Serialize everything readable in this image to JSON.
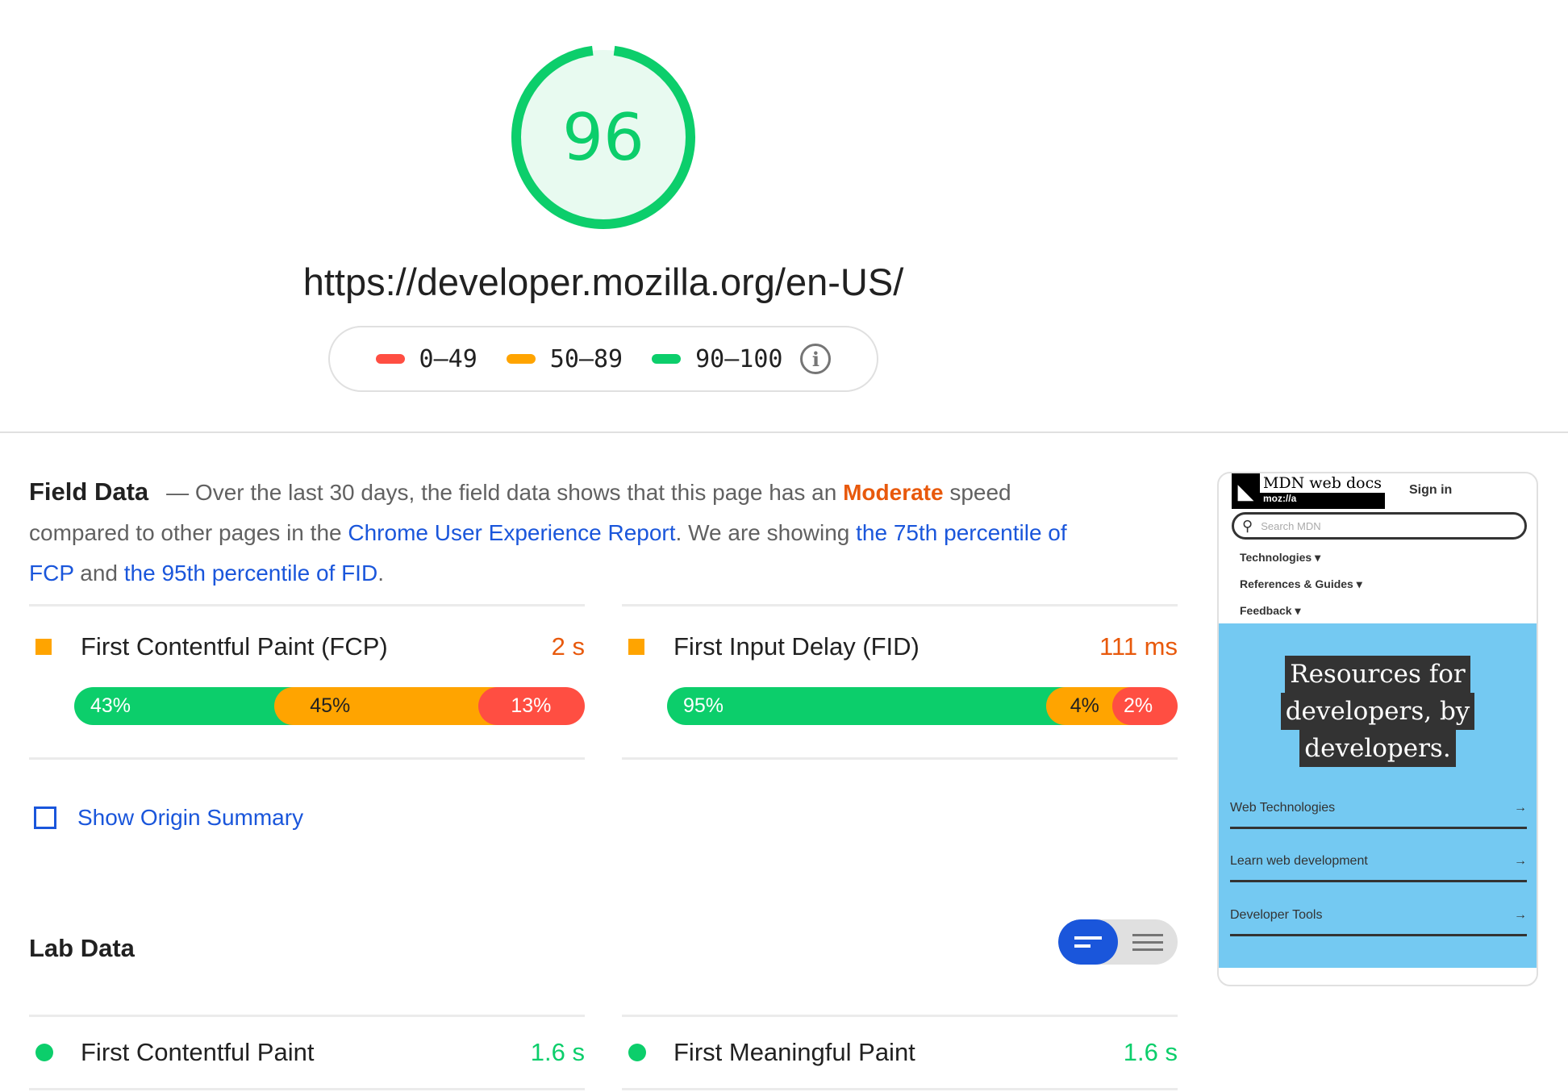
{
  "score": {
    "value": "96",
    "fraction": 0.96,
    "color": "#0cce6b"
  },
  "url": "https://developer.mozilla.org/en-US/",
  "legend": [
    {
      "label": "0–49",
      "color": "#ff4e42"
    },
    {
      "label": "50–89",
      "color": "#ffa400"
    },
    {
      "label": "90–100",
      "color": "#0cce6b"
    }
  ],
  "legend_info_icon": "info-icon",
  "field": {
    "title": "Field Data",
    "t1": "— Over the last 30 days, the field data shows that this page has an ",
    "speed": "Moderate",
    "t2": " speed compared to other pages in the ",
    "link1": "Chrome User Experience Report",
    "t3": ". We are showing ",
    "link2": "the 75th percentile of FCP",
    "t4": " and ",
    "link3": "the 95th percentile of FID",
    "t5": ".",
    "metrics": [
      {
        "name": "First Contentful Paint (FCP)",
        "value": "2 s",
        "dist": [
          {
            "label": "43%",
            "pct": 43
          },
          {
            "label": "45%",
            "pct": 45
          },
          {
            "label": "13%",
            "pct": 13
          }
        ]
      },
      {
        "name": "First Input Delay (FID)",
        "value": "111 ms",
        "dist": [
          {
            "label": "95%",
            "pct": 95
          },
          {
            "label": "4%",
            "pct": 4
          },
          {
            "label": "2%",
            "pct": 2
          }
        ]
      }
    ]
  },
  "origin_summary": {
    "label": "Show Origin Summary",
    "checked": false
  },
  "lab": {
    "title": "Lab Data",
    "metrics": [
      {
        "name": "First Contentful Paint",
        "value": "1.6 s"
      },
      {
        "name": "First Meaningful Paint",
        "value": "1.6 s"
      }
    ]
  },
  "screenshot": {
    "logo_text": "MDN web docs",
    "logo_sub": "moz://a",
    "sign_in": "Sign in",
    "search_placeholder": "Search MDN",
    "nav": [
      "Technologies ▾",
      "References & Guides ▾",
      "Feedback ▾"
    ],
    "hero": [
      "Resources for",
      "developers, by",
      "developers."
    ],
    "links": [
      "Web Technologies",
      "Learn web development",
      "Developer Tools"
    ],
    "arrow": "→"
  }
}
